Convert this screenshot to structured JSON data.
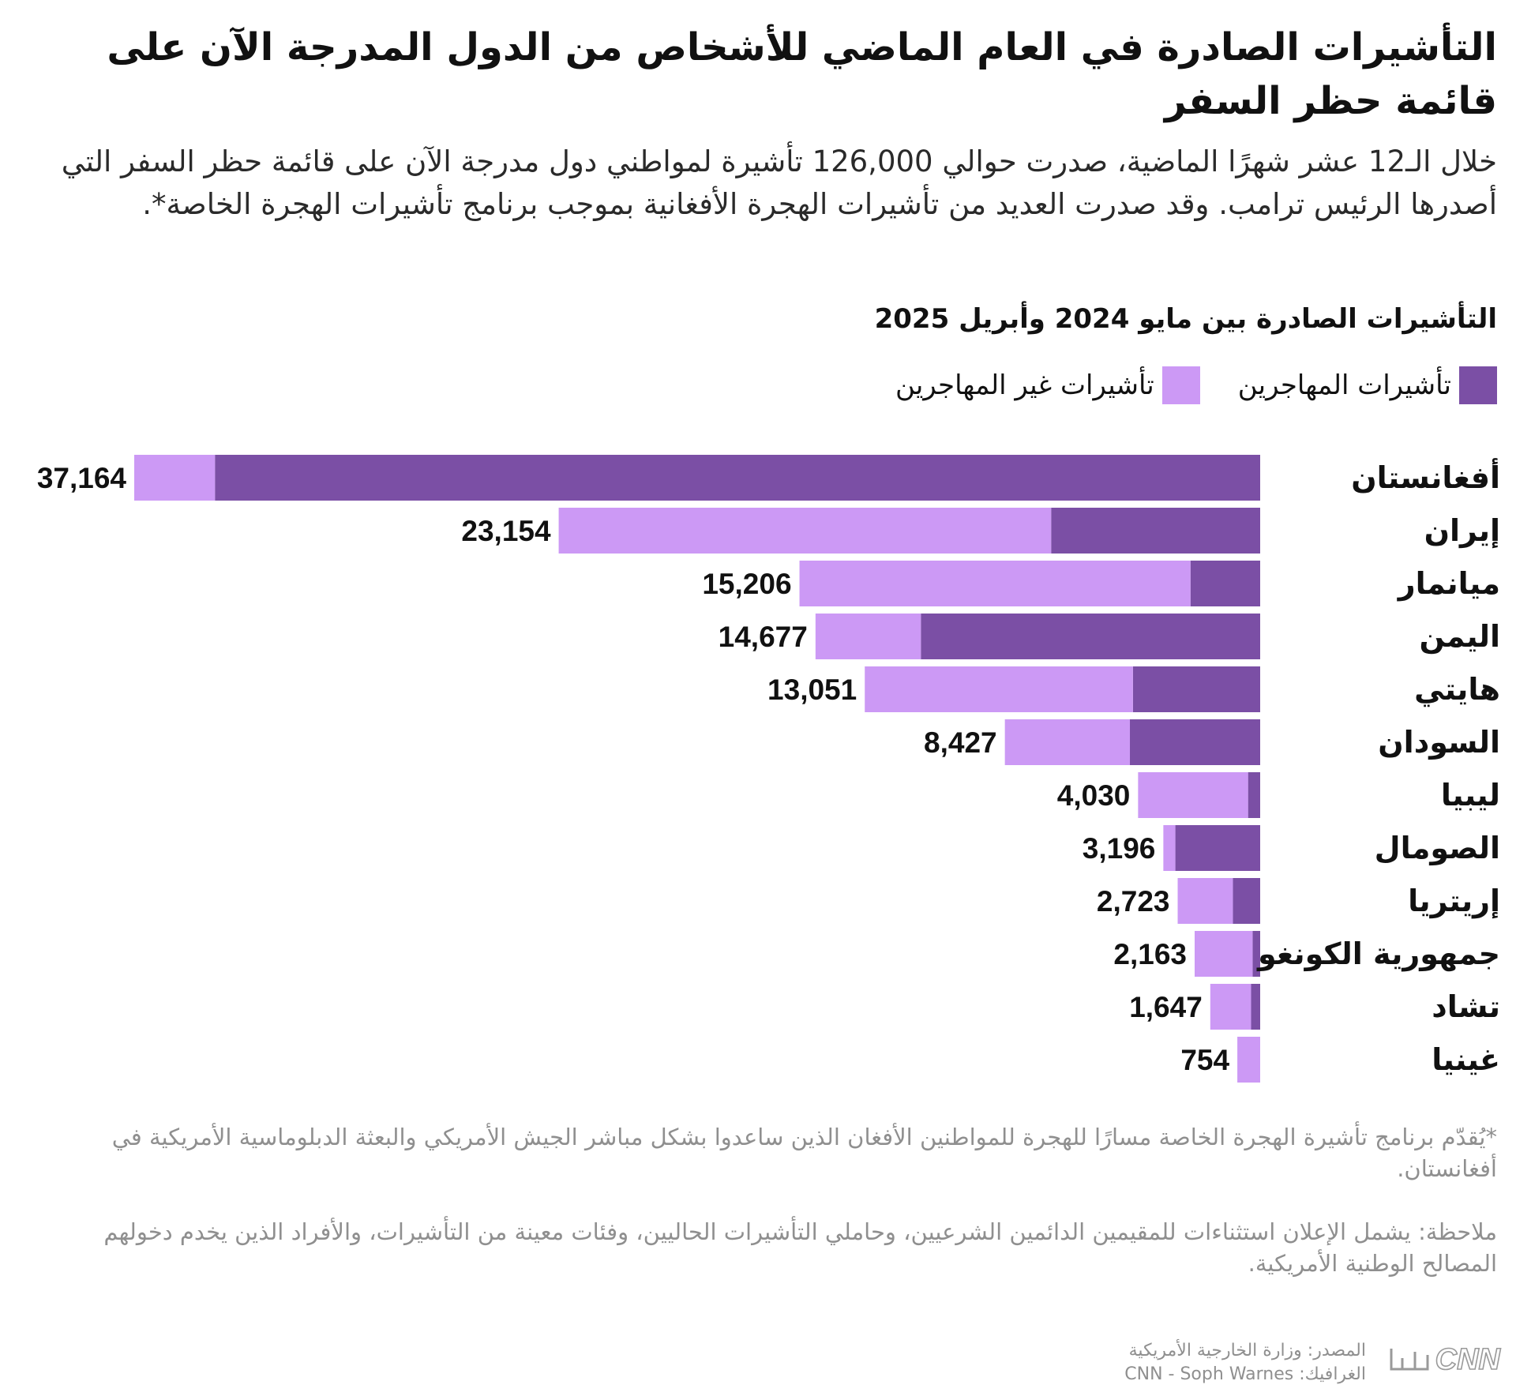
{
  "header": {
    "title": "التأشيرات الصادرة في العام الماضي للأشخاص من الدول المدرجة الآن على قائمة حظر السفر",
    "subtitle": "خلال الـ12 عشر شهرًا الماضية، صدرت حوالي 126,000 تأشيرة لمواطني دول مدرجة الآن على قائمة حظر السفر التي أصدرها الرئيس ترامب. وقد صدرت العديد من تأشيرات الهجرة الأفغانية بموجب برنامج تأشيرات الهجرة الخاصة*."
  },
  "colors": {
    "immigrant": "#7b4fa5",
    "non_immigrant": "#cc99f5"
  },
  "chart_data": {
    "type": "bar",
    "orientation": "horizontal",
    "stacked": true,
    "title": "التأشيرات الصادرة بين مايو 2024 وأبريل 2025",
    "legend_position": "top-right",
    "categories": [
      "أفغانستان",
      "إيران",
      "ميانمار",
      "اليمن",
      "هايتي",
      "السودان",
      "ليبيا",
      "الصومال",
      "إريتريا",
      "جمهورية الكونغو",
      "تشاد",
      "غينيا"
    ],
    "totals": [
      37164,
      23154,
      15206,
      14677,
      13051,
      8427,
      4030,
      3196,
      2723,
      2163,
      1647,
      754
    ],
    "total_labels": [
      "37,164",
      "23,154",
      "15,206",
      "14,677",
      "13,051",
      "8,427",
      "4,030",
      "3,196",
      "2,723",
      "2,163",
      "1,647",
      "754"
    ],
    "series": [
      {
        "name": "تأشيرات المهاجرين",
        "values": [
          34500,
          6900,
          2300,
          11200,
          4200,
          4300,
          400,
          2800,
          900,
          250,
          300,
          0
        ]
      },
      {
        "name": "تأشيرات غير المهاجرين",
        "values": [
          2664,
          16254,
          12906,
          3477,
          8851,
          4127,
          3630,
          396,
          1823,
          1913,
          1347,
          754
        ]
      }
    ],
    "xlim": [
      0,
      37164
    ],
    "grid": false
  },
  "footer": {
    "footnote": "*يُقدّم برنامج تأشيرة الهجرة الخاصة مسارًا للهجرة للمواطنين الأفغان الذين ساعدوا بشكل مباشر الجيش الأمريكي والبعثة الدبلوماسية الأمريكية في أفغانستان.",
    "note": "ملاحظة: يشمل الإعلان استثناءات للمقيمين الدائمين الشرعيين، وحاملي التأشيرات الحاليين، وفئات معينة من التأشيرات، والأفراد الذين يخدم دخولهم المصالح الوطنية الأمريكية.",
    "source": "المصدر: وزارة الخارجية الأمريكية",
    "graphic": "الغرافيك: CNN - Soph Warnes",
    "logo_text": "بالعربية CNN"
  }
}
